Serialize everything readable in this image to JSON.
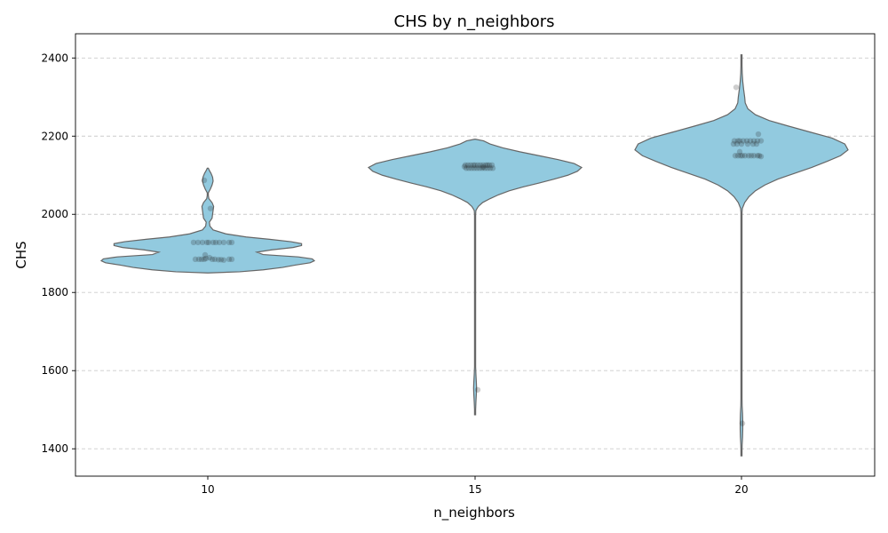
{
  "colors": {
    "violin_fill": "#92cadf",
    "violin_edge": "#666666",
    "points": "#222222",
    "grid": "#cccccc"
  },
  "chart_data": {
    "type": "violin",
    "title": "CHS by n_neighbors",
    "xlabel": "n_neighbors",
    "ylabel": "CHS",
    "categories": [
      "10",
      "15",
      "20"
    ],
    "ylim": [
      1330,
      2462
    ],
    "yticks": [
      1400,
      1600,
      1800,
      2000,
      2200,
      2400
    ],
    "grid": "y dashed",
    "distributions": [
      {
        "category": "10",
        "range": [
          1850,
          2118
        ],
        "profile": [
          [
            1850,
            0.0
          ],
          [
            1853,
            0.3
          ],
          [
            1858,
            0.52
          ],
          [
            1864,
            0.7
          ],
          [
            1870,
            0.82
          ],
          [
            1876,
            0.96
          ],
          [
            1881,
            1.0
          ],
          [
            1886,
            0.98
          ],
          [
            1891,
            0.85
          ],
          [
            1897,
            0.52
          ],
          [
            1903,
            0.46
          ],
          [
            1909,
            0.6
          ],
          [
            1915,
            0.8
          ],
          [
            1920,
            0.88
          ],
          [
            1925,
            0.88
          ],
          [
            1930,
            0.78
          ],
          [
            1936,
            0.58
          ],
          [
            1942,
            0.36
          ],
          [
            1950,
            0.17
          ],
          [
            1960,
            0.05
          ],
          [
            1970,
            0.02
          ],
          [
            1980,
            0.015
          ],
          [
            1990,
            0.04
          ],
          [
            2000,
            0.045
          ],
          [
            2010,
            0.05
          ],
          [
            2020,
            0.055
          ],
          [
            2030,
            0.04
          ],
          [
            2040,
            0.01
          ],
          [
            2048,
            0.003
          ],
          [
            2055,
            0.004
          ],
          [
            2065,
            0.025
          ],
          [
            2075,
            0.04
          ],
          [
            2085,
            0.05
          ],
          [
            2095,
            0.045
          ],
          [
            2105,
            0.03
          ],
          [
            2112,
            0.015
          ],
          [
            2118,
            0.0
          ]
        ],
        "points": [
          [
            -0.16,
            1928
          ],
          [
            -0.11,
            1928
          ],
          [
            -0.06,
            1928
          ],
          [
            -0.01,
            1928
          ],
          [
            0.01,
            1928
          ],
          [
            0.06,
            1928
          ],
          [
            0.09,
            1928
          ],
          [
            0.13,
            1928
          ],
          [
            0.18,
            1928
          ],
          [
            0.24,
            1928
          ],
          [
            0.27,
            1928
          ],
          [
            -0.14,
            1885
          ],
          [
            -0.1,
            1885
          ],
          [
            -0.07,
            1885
          ],
          [
            -0.04,
            1885
          ],
          [
            -0.02,
            1887
          ],
          [
            0.02,
            1889
          ],
          [
            0.05,
            1885
          ],
          [
            0.08,
            1885
          ],
          [
            0.12,
            1884
          ],
          [
            0.15,
            1884
          ],
          [
            0.18,
            1883
          ],
          [
            0.24,
            1885
          ],
          [
            0.27,
            1885
          ],
          [
            -0.03,
            1896
          ],
          [
            -0.04,
            2087
          ],
          [
            0.03,
            2015
          ]
        ]
      },
      {
        "category": "15",
        "range": [
          1487,
          2192
        ],
        "profile": [
          [
            1487,
            0.0
          ],
          [
            1500,
            0.004
          ],
          [
            1520,
            0.008
          ],
          [
            1540,
            0.012
          ],
          [
            1555,
            0.014
          ],
          [
            1570,
            0.012
          ],
          [
            1590,
            0.008
          ],
          [
            1610,
            0.004
          ],
          [
            1630,
            0.002
          ],
          [
            1650,
            0.002
          ],
          [
            1700,
            0.002
          ],
          [
            1800,
            0.002
          ],
          [
            1900,
            0.002
          ],
          [
            1970,
            0.002
          ],
          [
            1990,
            0.002
          ],
          [
            2000,
            0.003
          ],
          [
            2010,
            0.008
          ],
          [
            2020,
            0.03
          ],
          [
            2030,
            0.07
          ],
          [
            2040,
            0.14
          ],
          [
            2050,
            0.22
          ],
          [
            2060,
            0.32
          ],
          [
            2070,
            0.45
          ],
          [
            2080,
            0.6
          ],
          [
            2090,
            0.74
          ],
          [
            2100,
            0.87
          ],
          [
            2110,
            0.96
          ],
          [
            2120,
            1.0
          ],
          [
            2130,
            0.93
          ],
          [
            2140,
            0.78
          ],
          [
            2150,
            0.6
          ],
          [
            2160,
            0.42
          ],
          [
            2170,
            0.26
          ],
          [
            2180,
            0.14
          ],
          [
            2188,
            0.08
          ],
          [
            2192,
            0.0
          ]
        ],
        "points": [
          [
            -0.11,
            2126
          ],
          [
            -0.08,
            2126
          ],
          [
            -0.05,
            2126
          ],
          [
            -0.02,
            2126
          ],
          [
            0.0,
            2126
          ],
          [
            0.03,
            2126
          ],
          [
            0.06,
            2126
          ],
          [
            0.09,
            2126
          ],
          [
            0.12,
            2126
          ],
          [
            0.14,
            2126
          ],
          [
            0.16,
            2126
          ],
          [
            0.19,
            2126
          ],
          [
            -0.1,
            2118
          ],
          [
            -0.07,
            2118
          ],
          [
            -0.04,
            2118
          ],
          [
            -0.01,
            2118
          ],
          [
            0.02,
            2118
          ],
          [
            0.05,
            2118
          ],
          [
            0.08,
            2118
          ],
          [
            0.11,
            2118
          ],
          [
            0.14,
            2118
          ],
          [
            0.17,
            2118
          ],
          [
            0.2,
            2118
          ],
          [
            -0.12,
            2122
          ],
          [
            0.09,
            2121
          ],
          [
            0.03,
            1551
          ]
        ]
      },
      {
        "category": "20",
        "range": [
          1382,
          2408
        ],
        "profile": [
          [
            1382,
            0.0
          ],
          [
            1395,
            0.003
          ],
          [
            1410,
            0.006
          ],
          [
            1430,
            0.01
          ],
          [
            1450,
            0.012
          ],
          [
            1470,
            0.012
          ],
          [
            1490,
            0.01
          ],
          [
            1510,
            0.006
          ],
          [
            1530,
            0.003
          ],
          [
            1545,
            0.002
          ],
          [
            1600,
            0.002
          ],
          [
            1700,
            0.002
          ],
          [
            1800,
            0.002
          ],
          [
            1900,
            0.002
          ],
          [
            1980,
            0.002
          ],
          [
            1995,
            0.002
          ],
          [
            2005,
            0.003
          ],
          [
            2015,
            0.008
          ],
          [
            2030,
            0.03
          ],
          [
            2045,
            0.07
          ],
          [
            2060,
            0.13
          ],
          [
            2075,
            0.22
          ],
          [
            2090,
            0.34
          ],
          [
            2105,
            0.5
          ],
          [
            2120,
            0.66
          ],
          [
            2135,
            0.8
          ],
          [
            2150,
            0.93
          ],
          [
            2165,
            1.0
          ],
          [
            2180,
            0.97
          ],
          [
            2195,
            0.85
          ],
          [
            2210,
            0.65
          ],
          [
            2225,
            0.45
          ],
          [
            2240,
            0.26
          ],
          [
            2255,
            0.13
          ],
          [
            2270,
            0.06
          ],
          [
            2285,
            0.035
          ],
          [
            2300,
            0.03
          ],
          [
            2320,
            0.02
          ],
          [
            2340,
            0.012
          ],
          [
            2360,
            0.007
          ],
          [
            2380,
            0.004
          ],
          [
            2395,
            0.002
          ],
          [
            2408,
            0.0
          ]
        ],
        "points": [
          [
            -0.08,
            2188
          ],
          [
            -0.04,
            2188
          ],
          [
            -0.02,
            2188
          ],
          [
            0.02,
            2188
          ],
          [
            0.06,
            2188
          ],
          [
            0.1,
            2188
          ],
          [
            0.14,
            2188
          ],
          [
            0.18,
            2188
          ],
          [
            0.22,
            2188
          ],
          [
            -0.09,
            2180
          ],
          [
            -0.05,
            2180
          ],
          [
            0.0,
            2180
          ],
          [
            0.07,
            2180
          ],
          [
            0.13,
            2180
          ],
          [
            0.17,
            2180
          ],
          [
            -0.07,
            2150
          ],
          [
            -0.04,
            2150
          ],
          [
            -0.01,
            2150
          ],
          [
            0.01,
            2150
          ],
          [
            0.04,
            2150
          ],
          [
            0.08,
            2150
          ],
          [
            0.11,
            2150
          ],
          [
            0.14,
            2150
          ],
          [
            0.18,
            2150
          ],
          [
            0.2,
            2150
          ],
          [
            0.22,
            2148
          ],
          [
            -0.02,
            2160
          ],
          [
            0.19,
            2205
          ],
          [
            -0.06,
            2325
          ],
          [
            0.01,
            1465
          ]
        ]
      }
    ]
  }
}
